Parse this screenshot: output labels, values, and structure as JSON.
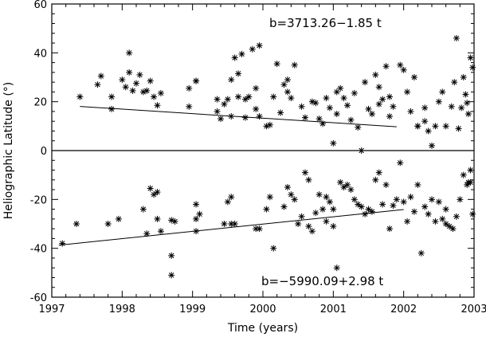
{
  "chart_data": {
    "type": "scatter",
    "xlabel": "Time (years)",
    "ylabel": "Heliographic Latitude (°)",
    "xlim": [
      1997,
      2003
    ],
    "ylim": [
      -60,
      60
    ],
    "xticks": [
      1997,
      1998,
      1999,
      2000,
      2001,
      2002,
      2003
    ],
    "yticks": [
      -60,
      -40,
      -20,
      0,
      20,
      40,
      60
    ],
    "zero_line": 0,
    "marker": "asterisk",
    "annotations": [
      {
        "text": "b=3713.26−1.85 t",
        "hemisphere": "north"
      },
      {
        "text": "b=−5990.09+2.98 t",
        "hemisphere": "south"
      }
    ],
    "series": [
      {
        "hemisphere": "north",
        "fit": {
          "slope": -1.85,
          "intercept": 3713.26,
          "x_range": [
            1997.4,
            2001.9
          ]
        },
        "points": [
          [
            1997.4,
            22
          ],
          [
            1997.65,
            27
          ],
          [
            1997.7,
            30.5
          ],
          [
            1997.85,
            17
          ],
          [
            1997.85,
            22
          ],
          [
            1998.0,
            29
          ],
          [
            1998.05,
            26
          ],
          [
            1998.1,
            32
          ],
          [
            1998.1,
            40
          ],
          [
            1998.15,
            24.5
          ],
          [
            1998.2,
            27.5
          ],
          [
            1998.25,
            31
          ],
          [
            1998.3,
            24
          ],
          [
            1998.35,
            24.5
          ],
          [
            1998.4,
            28.5
          ],
          [
            1998.45,
            22
          ],
          [
            1998.5,
            18.5
          ],
          [
            1998.55,
            23.5
          ],
          [
            1998.95,
            25.5
          ],
          [
            1998.95,
            18
          ],
          [
            1999.05,
            28.5
          ],
          [
            1999.05,
            28.5
          ],
          [
            1999.35,
            21
          ],
          [
            1999.35,
            16
          ],
          [
            1999.4,
            13
          ],
          [
            1999.45,
            19
          ],
          [
            1999.5,
            21
          ],
          [
            1999.55,
            14
          ],
          [
            1999.55,
            29
          ],
          [
            1999.6,
            38
          ],
          [
            1999.65,
            31.5
          ],
          [
            1999.65,
            22
          ],
          [
            1999.7,
            39.5
          ],
          [
            1999.75,
            13.5
          ],
          [
            1999.75,
            21
          ],
          [
            1999.8,
            22
          ],
          [
            1999.85,
            41.5
          ],
          [
            1999.9,
            17
          ],
          [
            1999.9,
            25.5
          ],
          [
            1999.95,
            14
          ],
          [
            1999.95,
            43
          ],
          [
            2000.05,
            10
          ],
          [
            2000.1,
            10.5
          ],
          [
            2000.15,
            22
          ],
          [
            2000.2,
            35.5
          ],
          [
            2000.25,
            15.5
          ],
          [
            2000.3,
            27
          ],
          [
            2000.35,
            29
          ],
          [
            2000.35,
            24
          ],
          [
            2000.4,
            21.5
          ],
          [
            2000.45,
            35
          ],
          [
            2000.55,
            18
          ],
          [
            2000.6,
            13.5
          ],
          [
            2000.7,
            20
          ],
          [
            2000.75,
            19.5
          ],
          [
            2000.8,
            13
          ],
          [
            2000.85,
            11
          ],
          [
            2000.9,
            21.5
          ],
          [
            2000.95,
            17.5
          ],
          [
            2001.0,
            3
          ],
          [
            2001.05,
            15
          ],
          [
            2001.05,
            24
          ],
          [
            2001.1,
            25.5
          ],
          [
            2001.15,
            21.5
          ],
          [
            2001.2,
            18.5
          ],
          [
            2001.25,
            12.5
          ],
          [
            2001.3,
            23.5
          ],
          [
            2001.35,
            9.5
          ],
          [
            2001.4,
            0
          ],
          [
            2001.45,
            28
          ],
          [
            2001.5,
            17
          ],
          [
            2001.55,
            15
          ],
          [
            2001.6,
            31
          ],
          [
            2001.65,
            26
          ],
          [
            2001.65,
            19
          ],
          [
            2001.7,
            21
          ],
          [
            2001.75,
            34.5
          ],
          [
            2001.8,
            22
          ],
          [
            2001.8,
            14
          ],
          [
            2001.85,
            18
          ],
          [
            2001.95,
            35
          ],
          [
            2002.0,
            33
          ],
          [
            2002.05,
            24
          ],
          [
            2002.1,
            16
          ],
          [
            2002.15,
            30
          ],
          [
            2002.2,
            10
          ],
          [
            2002.3,
            12
          ],
          [
            2002.35,
            8
          ],
          [
            2002.4,
            2
          ],
          [
            2002.45,
            10
          ],
          [
            2002.2,
            10
          ],
          [
            2002.3,
            17.5
          ],
          [
            2002.5,
            20
          ],
          [
            2002.55,
            24
          ],
          [
            2002.6,
            10
          ],
          [
            2002.68,
            18
          ],
          [
            2002.72,
            28
          ],
          [
            2002.75,
            46
          ],
          [
            2002.78,
            9
          ],
          [
            2002.82,
            17.5
          ],
          [
            2002.85,
            30
          ],
          [
            2002.88,
            23
          ],
          [
            2002.9,
            19.5
          ],
          [
            2002.92,
            15
          ],
          [
            2002.95,
            38
          ],
          [
            2002.98,
            34
          ]
        ]
      },
      {
        "hemisphere": "south",
        "fit": {
          "slope": 2.98,
          "intercept": -5990.09,
          "x_range": [
            1997.1,
            2002.0
          ]
        },
        "points": [
          [
            1997.15,
            -38
          ],
          [
            1997.35,
            -30
          ],
          [
            1997.8,
            -30
          ],
          [
            1997.95,
            -28
          ],
          [
            1998.3,
            -24
          ],
          [
            1998.35,
            -34
          ],
          [
            1998.4,
            -15.5
          ],
          [
            1998.45,
            -18
          ],
          [
            1998.5,
            -17
          ],
          [
            1998.5,
            -28
          ],
          [
            1998.55,
            -33
          ],
          [
            1998.7,
            -28.5
          ],
          [
            1998.7,
            -43
          ],
          [
            1998.7,
            -51
          ],
          [
            1998.75,
            -29
          ],
          [
            1999.05,
            -22
          ],
          [
            1999.05,
            -28
          ],
          [
            1999.05,
            -33
          ],
          [
            1999.1,
            -26
          ],
          [
            1999.45,
            -30
          ],
          [
            1999.5,
            -21
          ],
          [
            1999.55,
            -19
          ],
          [
            1999.55,
            -30
          ],
          [
            1999.6,
            -30
          ],
          [
            1999.9,
            -32
          ],
          [
            1999.95,
            -32
          ],
          [
            2000.05,
            -24
          ],
          [
            2000.1,
            -19
          ],
          [
            2000.15,
            -40
          ],
          [
            2000.3,
            -23
          ],
          [
            2000.35,
            -15
          ],
          [
            2000.4,
            -18
          ],
          [
            2000.45,
            -20
          ],
          [
            2000.5,
            -30
          ],
          [
            2000.55,
            -27
          ],
          [
            2000.6,
            -9
          ],
          [
            2000.65,
            -12
          ],
          [
            2000.65,
            -31
          ],
          [
            2000.7,
            -33
          ],
          [
            2000.75,
            -25.5
          ],
          [
            2000.8,
            -18
          ],
          [
            2000.85,
            -24
          ],
          [
            2000.9,
            -19
          ],
          [
            2000.9,
            -29
          ],
          [
            2000.95,
            -21
          ],
          [
            2001.0,
            -24
          ],
          [
            2001.0,
            -31
          ],
          [
            2001.05,
            -48
          ],
          [
            2001.1,
            -13
          ],
          [
            2001.15,
            -15
          ],
          [
            2001.2,
            -14
          ],
          [
            2001.25,
            -16
          ],
          [
            2001.3,
            -20
          ],
          [
            2001.35,
            -22
          ],
          [
            2001.4,
            -23
          ],
          [
            2001.45,
            -26
          ],
          [
            2001.5,
            -24
          ],
          [
            2001.55,
            -25
          ],
          [
            2001.6,
            -12
          ],
          [
            2001.65,
            -9
          ],
          [
            2001.7,
            -22
          ],
          [
            2001.75,
            -14
          ],
          [
            2001.8,
            -32
          ],
          [
            2001.85,
            -22.5
          ],
          [
            2001.9,
            -20
          ],
          [
            2001.95,
            -5
          ],
          [
            2002.0,
            -21
          ],
          [
            2002.05,
            -29
          ],
          [
            2002.1,
            -19
          ],
          [
            2002.15,
            -25
          ],
          [
            2002.2,
            -14
          ],
          [
            2002.25,
            -42
          ],
          [
            2002.3,
            -23
          ],
          [
            2002.35,
            -26
          ],
          [
            2002.4,
            -20
          ],
          [
            2002.45,
            -29
          ],
          [
            2002.5,
            -21
          ],
          [
            2002.55,
            -28
          ],
          [
            2002.6,
            -30
          ],
          [
            2002.6,
            -24
          ],
          [
            2002.65,
            -31
          ],
          [
            2002.7,
            -32
          ],
          [
            2002.75,
            -27
          ],
          [
            2002.8,
            -20
          ],
          [
            2002.85,
            -10
          ],
          [
            2002.9,
            -14
          ],
          [
            2002.92,
            -13
          ],
          [
            2002.95,
            -8
          ],
          [
            2002.95,
            -13
          ],
          [
            2002.98,
            -26
          ]
        ]
      }
    ]
  }
}
